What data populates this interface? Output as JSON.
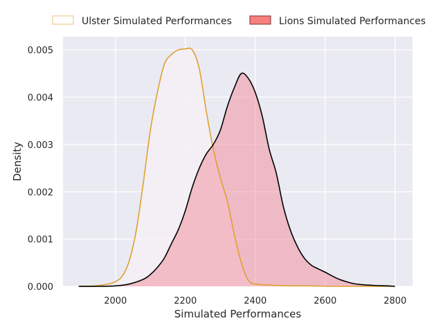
{
  "chart_data": {
    "type": "area",
    "xlabel": "Simulated Performances",
    "ylabel": "Density",
    "xlim": [
      1850,
      2850
    ],
    "ylim": [
      0,
      0.00528
    ],
    "x_ticks": [
      2000,
      2200,
      2400,
      2600,
      2800
    ],
    "x_tick_labels": [
      "2000",
      "2200",
      "2400",
      "2600",
      "2800"
    ],
    "y_ticks": [
      0,
      0.001,
      0.002,
      0.003,
      0.004,
      0.005
    ],
    "y_tick_labels": [
      "0.000",
      "0.001",
      "0.002",
      "0.003",
      "0.004",
      "0.005"
    ],
    "grid": true,
    "legend": {
      "placement": "top",
      "ncol": 2
    },
    "series": [
      {
        "name": "Ulster Simulated Performances",
        "line_color": "#e0a030",
        "fill_color": "#f4f0f4",
        "legend_fill": "#ffffff",
        "legend_edge": "#e6c37a",
        "fill_opacity": 0.85,
        "points": [
          [
            1895,
            0
          ],
          [
            1940,
            1e-05
          ],
          [
            1980,
            5e-05
          ],
          [
            2000,
            0.0001
          ],
          [
            2020,
            0.00022
          ],
          [
            2040,
            0.00055
          ],
          [
            2060,
            0.0012
          ],
          [
            2080,
            0.0022
          ],
          [
            2100,
            0.0033
          ],
          [
            2120,
            0.0041
          ],
          [
            2140,
            0.0047
          ],
          [
            2160,
            0.0049
          ],
          [
            2180,
            0.005
          ],
          [
            2200,
            0.00502
          ],
          [
            2220,
            0.005
          ],
          [
            2240,
            0.0046
          ],
          [
            2260,
            0.0037
          ],
          [
            2280,
            0.0029
          ],
          [
            2300,
            0.0023
          ],
          [
            2320,
            0.0018
          ],
          [
            2340,
            0.0011
          ],
          [
            2360,
            0.0005
          ],
          [
            2380,
            0.00013
          ],
          [
            2400,
            5e-05
          ],
          [
            2430,
            3e-05
          ],
          [
            2460,
            2e-05
          ],
          [
            2500,
            1e-05
          ],
          [
            2550,
            1e-05
          ],
          [
            2620,
            0
          ],
          [
            2700,
            0
          ],
          [
            2800,
            0
          ]
        ]
      },
      {
        "name": "Lions Simulated Performances",
        "line_color": "#000000",
        "fill_color": "#f28090",
        "legend_fill": "#f77f7f",
        "legend_edge": "#7a3030",
        "fill_opacity": 0.45,
        "points": [
          [
            1895,
            0
          ],
          [
            1950,
            0
          ],
          [
            2000,
            1e-05
          ],
          [
            2040,
            5e-05
          ],
          [
            2080,
            0.00015
          ],
          [
            2100,
            0.00025
          ],
          [
            2120,
            0.0004
          ],
          [
            2140,
            0.0006
          ],
          [
            2160,
            0.0009
          ],
          [
            2180,
            0.0012
          ],
          [
            2200,
            0.0016
          ],
          [
            2220,
            0.0021
          ],
          [
            2240,
            0.0025
          ],
          [
            2260,
            0.0028
          ],
          [
            2280,
            0.003
          ],
          [
            2300,
            0.0033
          ],
          [
            2320,
            0.0038
          ],
          [
            2340,
            0.0042
          ],
          [
            2360,
            0.0045
          ],
          [
            2380,
            0.0044
          ],
          [
            2400,
            0.0041
          ],
          [
            2420,
            0.0036
          ],
          [
            2440,
            0.0029
          ],
          [
            2460,
            0.0024
          ],
          [
            2480,
            0.0017
          ],
          [
            2500,
            0.0012
          ],
          [
            2520,
            0.00085
          ],
          [
            2540,
            0.0006
          ],
          [
            2560,
            0.00045
          ],
          [
            2580,
            0.00037
          ],
          [
            2600,
            0.0003
          ],
          [
            2620,
            0.00022
          ],
          [
            2640,
            0.00015
          ],
          [
            2660,
            0.0001
          ],
          [
            2680,
            6e-05
          ],
          [
            2700,
            4e-05
          ],
          [
            2740,
            2e-05
          ],
          [
            2780,
            1e-05
          ],
          [
            2800,
            0
          ]
        ]
      }
    ]
  }
}
